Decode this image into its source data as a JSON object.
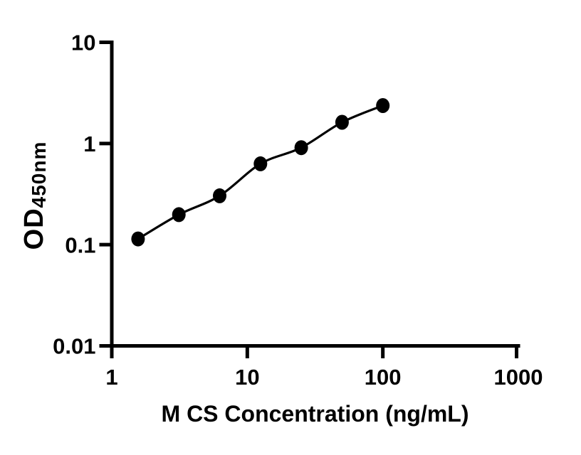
{
  "colors": {
    "foreground": "#000000",
    "background": "#ffffff"
  },
  "chart_data": {
    "type": "scatter",
    "title": "",
    "xlabel": "M CS Concentration (ng/mL)",
    "ylabel": "OD",
    "ylabel_subscript": "450nm",
    "x_scale": "log",
    "y_scale": "log",
    "xlim": [
      1,
      1000
    ],
    "ylim": [
      0.01,
      10
    ],
    "grid": false,
    "legend": "none",
    "x_ticks": [
      {
        "value": 1,
        "label": "1"
      },
      {
        "value": 10,
        "label": "10"
      },
      {
        "value": 100,
        "label": "100"
      },
      {
        "value": 1000,
        "label": "1000"
      }
    ],
    "y_ticks": [
      {
        "value": 10,
        "label": "10"
      },
      {
        "value": 1,
        "label": "1"
      },
      {
        "value": 0.1,
        "label": "0.1"
      },
      {
        "value": 0.01,
        "label": "0.01"
      }
    ],
    "series": [
      {
        "marker": "filled-circle",
        "line": "smooth",
        "color": "#000000",
        "points": [
          {
            "x": 1.5625,
            "y": 0.114
          },
          {
            "x": 3.125,
            "y": 0.198
          },
          {
            "x": 6.25,
            "y": 0.304
          },
          {
            "x": 12.5,
            "y": 0.63
          },
          {
            "x": 25,
            "y": 0.91
          },
          {
            "x": 50,
            "y": 1.62
          },
          {
            "x": 100,
            "y": 2.37
          }
        ]
      }
    ]
  }
}
